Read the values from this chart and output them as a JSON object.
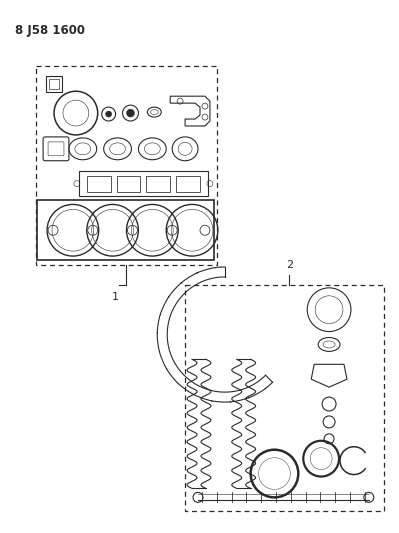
{
  "title": "8 J58 1600",
  "background_color": "#ffffff",
  "line_color": "#2a2a2a",
  "fig_width": 3.99,
  "fig_height": 5.33,
  "dpi": 100
}
